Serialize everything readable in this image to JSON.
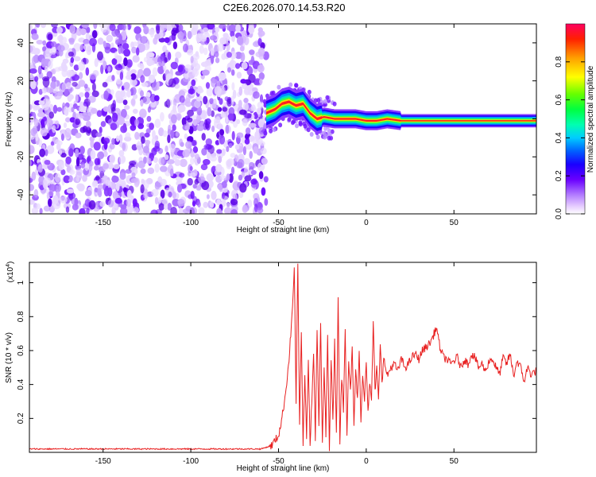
{
  "title": "C2E6.2026.070.14.53.R20",
  "chart_data": [
    {
      "type": "heatmap",
      "xlabel": "Height of straight line (km)",
      "ylabel": "Frequency (Hz)",
      "xlim": [
        -192,
        97
      ],
      "ylim": [
        -50,
        50
      ],
      "xticks": [
        -150,
        -100,
        -50,
        0,
        50
      ],
      "yticks": [
        -40,
        -20,
        0,
        20,
        40
      ],
      "colorbar": {
        "label": "Normalized spectral amplitude",
        "ticks": [
          0.0,
          0.2,
          0.4,
          0.6,
          0.8
        ],
        "range": [
          0,
          1
        ],
        "colormap": [
          "#ffffff",
          "#d9b8ff",
          "#8a2be2",
          "#3a00ff",
          "#0000ff",
          "#00ccff",
          "#00ff80",
          "#66ff00",
          "#ffff00",
          "#ff9900",
          "#ff0000"
        ]
      },
      "noise_region_x": [
        -192,
        -57
      ],
      "signal_track": [
        {
          "x": -57,
          "f": 3
        },
        {
          "x": -52,
          "f": 5
        },
        {
          "x": -48,
          "f": 8
        },
        {
          "x": -44,
          "f": 9
        },
        {
          "x": -40,
          "f": 7
        },
        {
          "x": -36,
          "f": 8
        },
        {
          "x": -32,
          "f": 3
        },
        {
          "x": -28,
          "f": 0
        },
        {
          "x": -24,
          "f": 1
        },
        {
          "x": -18,
          "f": 0
        },
        {
          "x": -12,
          "f": 0
        },
        {
          "x": -6,
          "f": 0
        },
        {
          "x": 0,
          "f": -1
        },
        {
          "x": 6,
          "f": -1
        },
        {
          "x": 12,
          "f": 0
        },
        {
          "x": 20,
          "f": -1
        },
        {
          "x": 40,
          "f": -1
        },
        {
          "x": 60,
          "f": -1
        },
        {
          "x": 80,
          "f": -1
        },
        {
          "x": 97,
          "f": -1
        }
      ]
    },
    {
      "type": "line",
      "xlabel": "Height of straight line (km)",
      "ylabel": "SNR (10 * v/v)",
      "y_multiplier": "(x10",
      "y_multiplier_exp": "4",
      "y_multiplier_close": ")",
      "xlim": [
        -192,
        97
      ],
      "ylim": [
        0,
        1.12
      ],
      "xticks": [
        -150,
        -100,
        -50,
        0,
        50
      ],
      "yticks": [
        0.2,
        0.4,
        0.6,
        0.8,
        1
      ],
      "series": [
        {
          "color": "#e82020",
          "x": [
            -192,
            -150,
            -100,
            -60,
            -54,
            -50,
            -48,
            -46,
            -44,
            -42,
            -41,
            -40,
            -39,
            -38,
            -37,
            -36,
            -35,
            -34,
            -33,
            -32,
            -31,
            -30,
            -29,
            -28,
            -27,
            -26,
            -25,
            -24,
            -23,
            -22,
            -21,
            -20,
            -19,
            -18,
            -17,
            -16,
            -15,
            -14,
            -13,
            -12,
            -11,
            -10,
            -9,
            -8,
            -7,
            -6,
            -5,
            -4,
            -3,
            -2,
            -1,
            0,
            1,
            2,
            3,
            4,
            5,
            6,
            7,
            8,
            9,
            10,
            12,
            14,
            16,
            18,
            20,
            22,
            24,
            26,
            28,
            30,
            32,
            34,
            36,
            38,
            40,
            42,
            44,
            46,
            48,
            50,
            52,
            54,
            56,
            58,
            60,
            62,
            64,
            66,
            68,
            70,
            72,
            74,
            76,
            78,
            80,
            82,
            84,
            86,
            88,
            90,
            92,
            94,
            97
          ],
          "y": [
            0.02,
            0.02,
            0.02,
            0.02,
            0.04,
            0.1,
            0.2,
            0.35,
            0.55,
            0.85,
            1.1,
            0.3,
            1.12,
            0.15,
            0.7,
            0.05,
            0.45,
            0.1,
            0.55,
            0.06,
            0.3,
            0.6,
            0.08,
            0.72,
            0.15,
            0.75,
            0.05,
            0.5,
            0.1,
            0.7,
            0.03,
            0.55,
            0.2,
            0.65,
            0.1,
            0.93,
            0.05,
            0.45,
            0.25,
            0.75,
            0.1,
            0.55,
            0.35,
            0.62,
            0.15,
            0.5,
            0.3,
            0.58,
            0.2,
            0.45,
            0.32,
            0.55,
            0.25,
            0.4,
            0.3,
            0.78,
            0.35,
            0.5,
            0.3,
            0.65,
            0.42,
            0.55,
            0.45,
            0.5,
            0.52,
            0.48,
            0.55,
            0.5,
            0.52,
            0.56,
            0.58,
            0.55,
            0.6,
            0.62,
            0.64,
            0.68,
            0.74,
            0.62,
            0.56,
            0.55,
            0.52,
            0.54,
            0.56,
            0.5,
            0.55,
            0.52,
            0.58,
            0.56,
            0.5,
            0.52,
            0.48,
            0.54,
            0.55,
            0.5,
            0.46,
            0.56,
            0.52,
            0.58,
            0.45,
            0.54,
            0.5,
            0.42,
            0.5,
            0.46,
            0.48
          ]
        }
      ]
    }
  ]
}
